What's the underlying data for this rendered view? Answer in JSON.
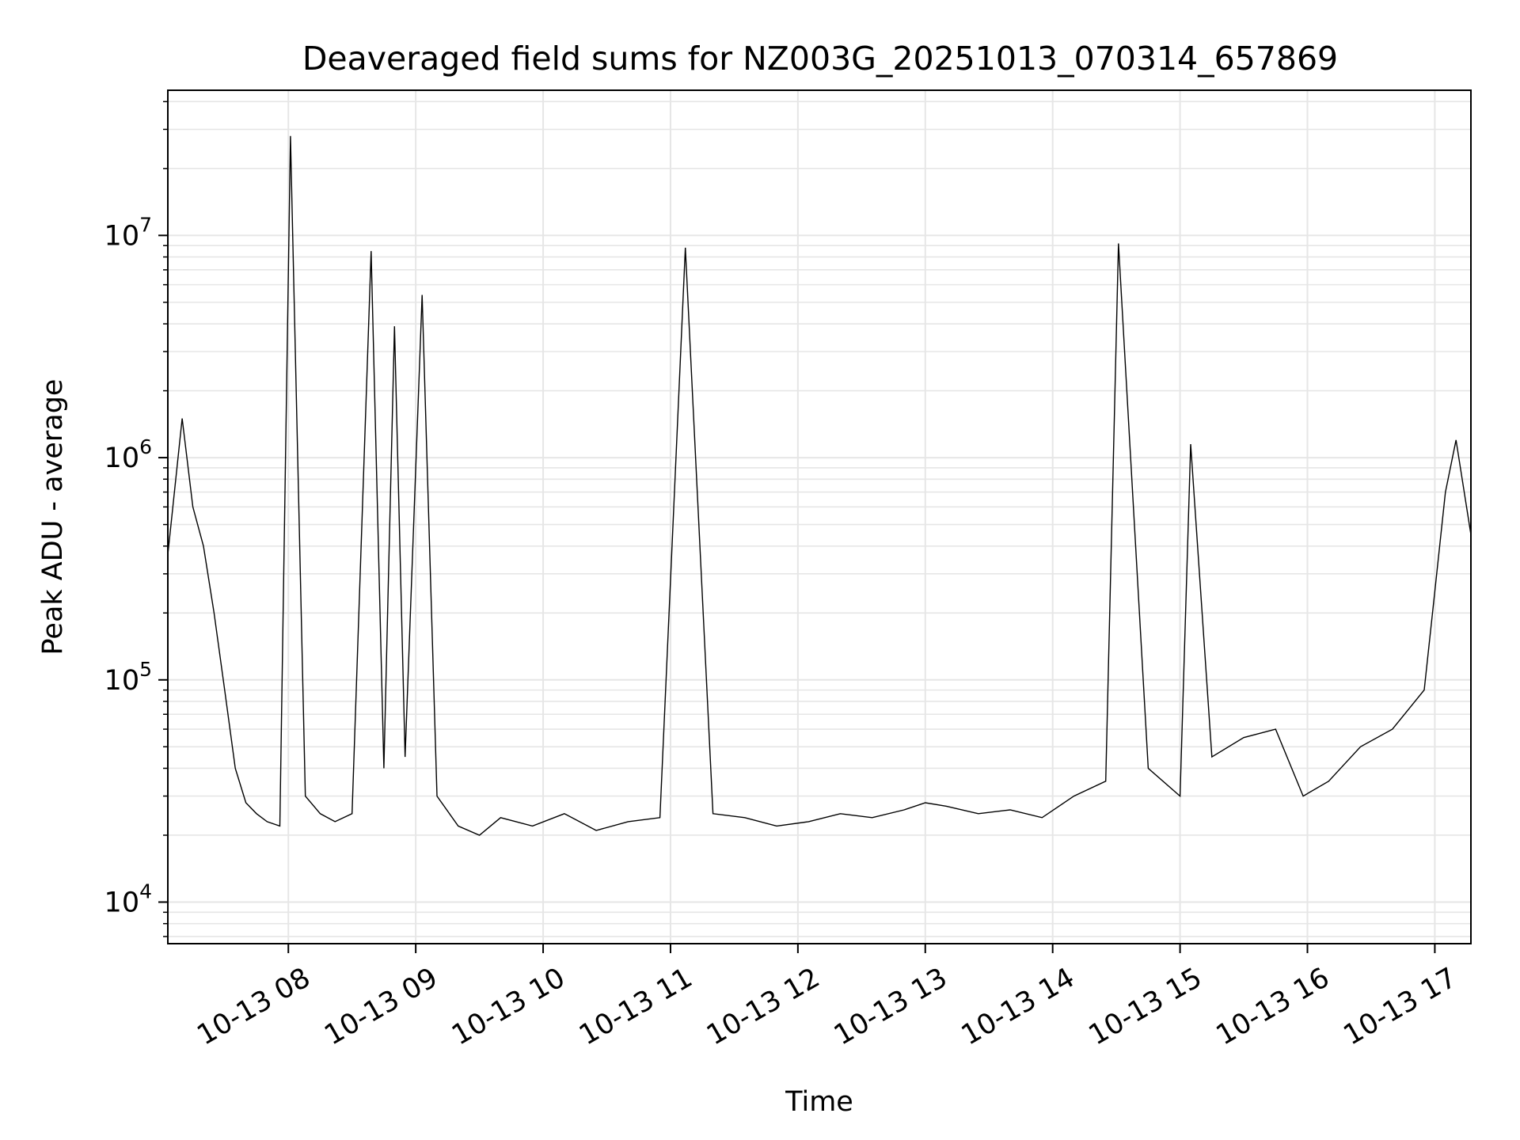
{
  "chart_data": {
    "type": "line",
    "title": "Deaveraged field sums for NZ003G_20251013_070314_657869",
    "xlabel": "Time",
    "ylabel": "Peak ADU - average",
    "yscale": "log",
    "ylim": [
      6500,
      45000000
    ],
    "xlim": [
      "2025-10-13 07:03:14",
      "2025-10-13 17:17:00"
    ],
    "grid": true,
    "line_color": "#000000",
    "grid_color": "#e6e6e6",
    "x_ticks": [
      {
        "value": "2025-10-13 08:00",
        "label": "10-13 08"
      },
      {
        "value": "2025-10-13 09:00",
        "label": "10-13 09"
      },
      {
        "value": "2025-10-13 10:00",
        "label": "10-13 10"
      },
      {
        "value": "2025-10-13 11:00",
        "label": "10-13 11"
      },
      {
        "value": "2025-10-13 12:00",
        "label": "10-13 12"
      },
      {
        "value": "2025-10-13 13:00",
        "label": "10-13 13"
      },
      {
        "value": "2025-10-13 14:00",
        "label": "10-13 14"
      },
      {
        "value": "2025-10-13 15:00",
        "label": "10-13 15"
      },
      {
        "value": "2025-10-13 16:00",
        "label": "10-13 16"
      },
      {
        "value": "2025-10-13 17:00",
        "label": "10-13 17"
      }
    ],
    "y_ticks": [
      {
        "value": 10000,
        "base": "10",
        "exp": "4"
      },
      {
        "value": 100000,
        "base": "10",
        "exp": "5"
      },
      {
        "value": 1000000,
        "base": "10",
        "exp": "6"
      },
      {
        "value": 10000000,
        "base": "10",
        "exp": "7"
      }
    ],
    "series": [
      {
        "x": [
          "07:03",
          "07:10",
          "07:15",
          "07:20",
          "07:25",
          "07:30",
          "07:35",
          "07:40",
          "07:45",
          "07:50",
          "07:56",
          "08:01",
          "08:08",
          "08:15",
          "08:22",
          "08:30",
          "08:39",
          "08:45",
          "08:50",
          "08:55",
          "09:03",
          "09:10",
          "09:20",
          "09:30",
          "09:40",
          "09:55",
          "10:10",
          "10:25",
          "10:40",
          "10:55",
          "11:07",
          "11:20",
          "11:35",
          "11:50",
          "12:05",
          "12:20",
          "12:35",
          "12:50",
          "13:00",
          "13:10",
          "13:25",
          "13:40",
          "13:55",
          "14:10",
          "14:25",
          "14:31",
          "14:45",
          "15:00",
          "15:05",
          "15:15",
          "15:30",
          "15:45",
          "15:58",
          "16:10",
          "16:25",
          "16:40",
          "16:55",
          "17:00",
          "17:05",
          "17:10",
          "17:17"
        ],
        "y": [
          350000,
          1500000,
          600000,
          400000,
          200000,
          90000,
          40000,
          28000,
          25000,
          23000,
          22000,
          28000000,
          30000,
          25000,
          23000,
          25000,
          8500000,
          40000,
          3900000,
          45000,
          5400000,
          30000,
          22000,
          20000,
          24000,
          22000,
          25000,
          21000,
          23000,
          24000,
          8800000,
          25000,
          24000,
          22000,
          23000,
          25000,
          24000,
          26000,
          28000,
          27000,
          25000,
          26000,
          24000,
          30000,
          35000,
          9200000,
          40000,
          30000,
          1150000,
          45000,
          55000,
          60000,
          30000,
          35000,
          50000,
          60000,
          90000,
          250000,
          700000,
          1200000,
          450000
        ]
      }
    ]
  }
}
